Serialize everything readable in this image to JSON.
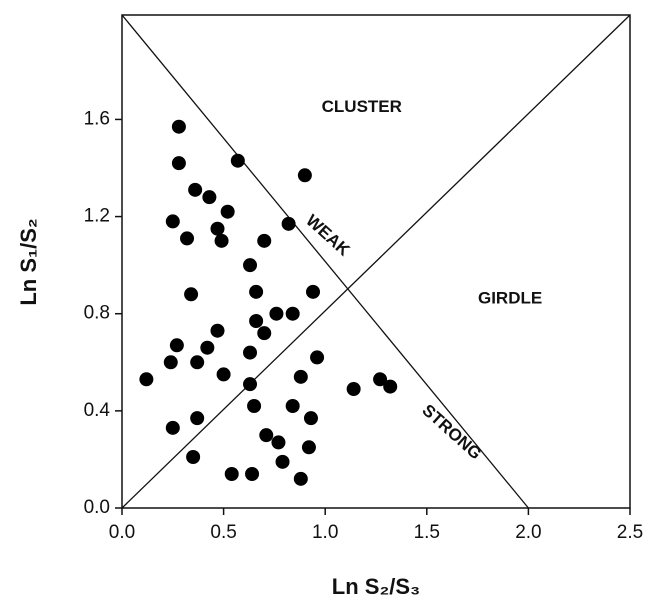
{
  "chart_data": {
    "type": "scatter",
    "x_label": "Ln S₂/S₃",
    "y_label": "Ln S₁/S₂",
    "xlim": [
      0,
      2.5
    ],
    "ylim": [
      0,
      2.03
    ],
    "xticks": [
      {
        "value": 0,
        "label": "0.0"
      },
      {
        "value": 0.5,
        "label": "0.5"
      },
      {
        "value": 1,
        "label": "1.0"
      },
      {
        "value": 1.5,
        "label": "1.5"
      },
      {
        "value": 2,
        "label": "2.0"
      },
      {
        "value": 2.5,
        "label": "2.5"
      }
    ],
    "yticks": [
      {
        "value": 0,
        "label": "0.0"
      },
      0.4,
      0.8,
      1.2,
      1.6
    ],
    "color": "#000000",
    "x": [
      0.28,
      0.57,
      0.9,
      0.28,
      0.36,
      0.43,
      0.52,
      0.25,
      0.47,
      0.49,
      0.32,
      0.7,
      0.82,
      0.63,
      0.34,
      0.66,
      0.94,
      0.76,
      0.84,
      0.66,
      0.47,
      0.7,
      0.27,
      0.42,
      0.63,
      0.24,
      0.37,
      0.96,
      0.12,
      0.5,
      0.88,
      0.63,
      1.14,
      1.27,
      1.32,
      0.65,
      0.84,
      0.93,
      0.37,
      0.25,
      0.71,
      0.77,
      0.92,
      0.35,
      0.79,
      0.54,
      0.64,
      0.88
    ],
    "values": [
      1.57,
      1.43,
      1.37,
      1.42,
      1.31,
      1.28,
      1.22,
      1.18,
      1.15,
      1.1,
      1.11,
      1.1,
      1.17,
      1.0,
      0.88,
      0.89,
      0.89,
      0.8,
      0.8,
      0.77,
      0.73,
      0.72,
      0.67,
      0.66,
      0.64,
      0.6,
      0.6,
      0.62,
      0.53,
      0.55,
      0.54,
      0.51,
      0.49,
      0.53,
      0.5,
      0.42,
      0.42,
      0.37,
      0.37,
      0.33,
      0.3,
      0.27,
      0.25,
      0.21,
      0.19,
      0.14,
      0.14,
      0.12
    ],
    "reference_lines": [
      {
        "x": [
          0,
          2.5
        ],
        "y": [
          0,
          2.03
        ]
      },
      {
        "x": [
          0,
          2.0
        ],
        "y": [
          2.03,
          0
        ]
      }
    ],
    "annotations": [
      {
        "text": "CLUSTER",
        "x": 1.18,
        "y": 1.65,
        "rotation": 0
      },
      {
        "text": "GIRDLE",
        "x": 1.91,
        "y": 0.86,
        "rotation": 0
      },
      {
        "text": "WEAK",
        "x": 1.01,
        "y": 1.12,
        "rotation": 42
      },
      {
        "text": "STRONG",
        "x": 1.62,
        "y": 0.31,
        "rotation": 42
      }
    ]
  }
}
